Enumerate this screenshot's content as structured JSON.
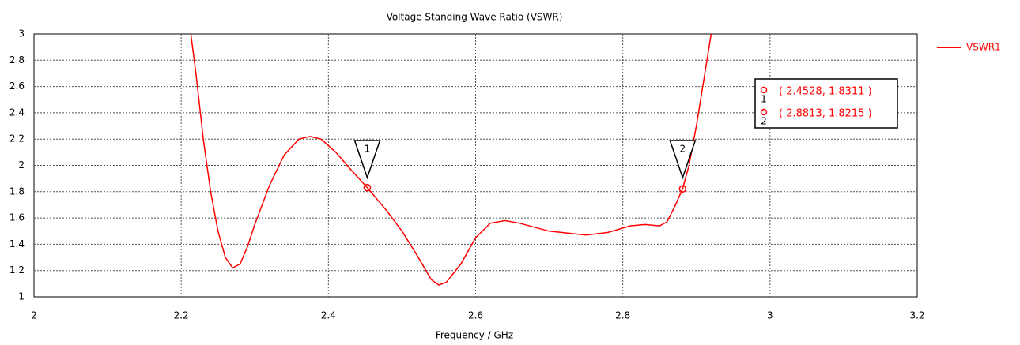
{
  "chart_data": {
    "type": "line",
    "title": "Voltage Standing Wave Ratio (VSWR)",
    "x_label": "Frequency / GHz",
    "x": [
      2.213,
      2.22,
      2.23,
      2.24,
      2.25,
      2.26,
      2.27,
      2.28,
      2.29,
      2.3,
      2.32,
      2.34,
      2.36,
      2.375,
      2.39,
      2.41,
      2.43,
      2.4528,
      2.48,
      2.5,
      2.52,
      2.54,
      2.55,
      2.56,
      2.58,
      2.6,
      2.62,
      2.64,
      2.66,
      2.7,
      2.75,
      2.78,
      2.81,
      2.83,
      2.85,
      2.86,
      2.87,
      2.8813,
      2.89,
      2.9,
      2.91,
      2.92
    ],
    "series": [
      {
        "name": "VSWR1",
        "color": "#ff0000",
        "values": [
          3.0,
          2.7,
          2.2,
          1.8,
          1.5,
          1.3,
          1.22,
          1.25,
          1.38,
          1.55,
          1.85,
          2.08,
          2.2,
          2.22,
          2.2,
          2.1,
          1.97,
          1.8311,
          1.65,
          1.5,
          1.32,
          1.13,
          1.09,
          1.11,
          1.25,
          1.45,
          1.56,
          1.58,
          1.56,
          1.5,
          1.47,
          1.49,
          1.54,
          1.55,
          1.54,
          1.57,
          1.68,
          1.8215,
          2.0,
          2.3,
          2.65,
          3.0
        ]
      }
    ],
    "markers": [
      {
        "label": "1",
        "x": 2.4528,
        "y": 1.8311,
        "text": "( 2.4528, 1.8311 )"
      },
      {
        "label": "2",
        "x": 2.8813,
        "y": 1.8215,
        "text": "( 2.8813, 1.8215 )"
      }
    ],
    "xlim": [
      2,
      3.2
    ],
    "xticks": [
      2,
      2.2,
      2.4,
      2.6,
      2.8,
      3,
      3.2
    ],
    "ylim": [
      1,
      3
    ],
    "yticks": [
      1,
      1.2,
      1.4,
      1.6,
      1.8,
      2,
      2.2,
      2.4,
      2.6,
      2.8,
      3
    ],
    "grid": true
  }
}
